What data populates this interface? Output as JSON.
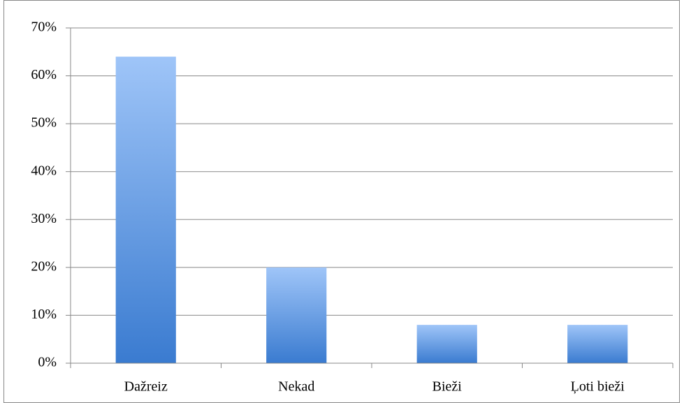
{
  "chart_data": {
    "type": "bar",
    "categories": [
      "Dažreiz",
      "Nekad",
      "Bieži",
      "Ļoti bieži"
    ],
    "values": [
      64,
      20,
      8,
      8
    ],
    "color": "#3a7bd0",
    "color_light": "#9fc5f8",
    "ylim": [
      0,
      70
    ],
    "yticks": [
      {
        "value": 0,
        "label": "0%"
      },
      {
        "value": 10,
        "label": "10%"
      },
      {
        "value": 20,
        "label": "20%"
      },
      {
        "value": 30,
        "label": "30%"
      },
      {
        "value": 40,
        "label": "40%"
      },
      {
        "value": 50,
        "label": "50%"
      },
      {
        "value": 60,
        "label": "60%"
      },
      {
        "value": 70,
        "label": "70%"
      }
    ],
    "grid": true
  }
}
